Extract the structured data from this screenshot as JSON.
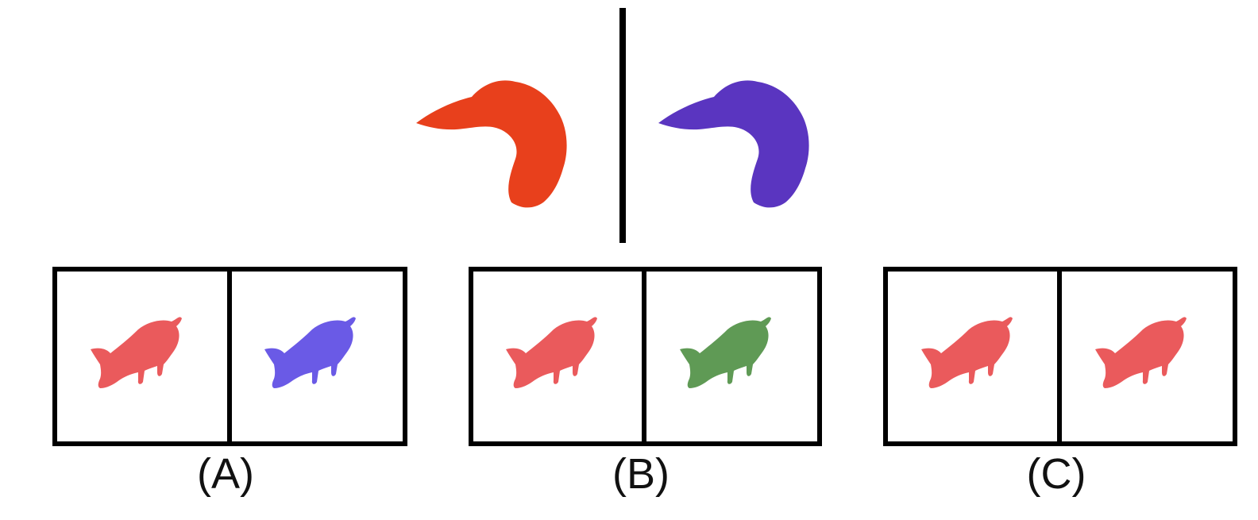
{
  "colors": {
    "croissant_left": "#e8401c",
    "croissant_right": "#5a35c0",
    "pig_red": "#ea5a5c",
    "pig_blue": "#6a5ae6",
    "pig_green": "#5f9a55",
    "frame": "#000000"
  },
  "example": {
    "left": {
      "object": "croissant",
      "color": "croissant_left"
    },
    "right": {
      "object": "croissant",
      "color": "croissant_right"
    }
  },
  "options": [
    {
      "label": "(A)",
      "left": "pig_red",
      "right": "pig_blue"
    },
    {
      "label": "(B)",
      "left": "pig_red",
      "right": "pig_green"
    },
    {
      "label": "(C)",
      "left": "pig_red",
      "right": "pig_red"
    }
  ]
}
